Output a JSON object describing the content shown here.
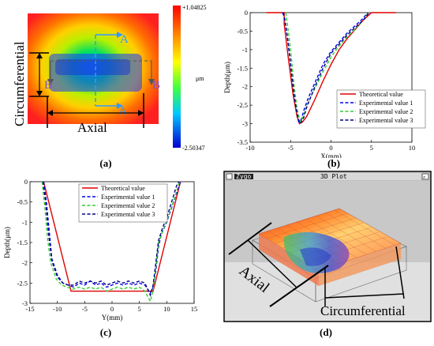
{
  "panel_a": {
    "cb_max": "+1.04825",
    "cb_min": "-2.50347",
    "cb_unit": "μm",
    "lbl_circ": "Circumferential",
    "lbl_axial": "Axial",
    "lbl_A_top": "A",
    "lbl_A_bot": "A",
    "lbl_B_left": "B",
    "lbl_B_right": "B",
    "caption": "(a)"
  },
  "panel_d": {
    "window_title": "3D Plot",
    "logo_text": "Zygo",
    "lbl_axial": "Axial",
    "lbl_circ": "Circumferential",
    "caption": "(d)"
  },
  "captions": {
    "b": "(b)",
    "c": "(c)"
  },
  "colors": {
    "theoretical": "#e00000",
    "exp1": "#0000ee",
    "exp2": "#33cc33",
    "exp3": "#000080"
  },
  "chart_data": [
    {
      "id": "b",
      "type": "line",
      "xlabel": "X(mm)",
      "ylabel": "Depth(μm)",
      "xlim": [
        -10,
        10
      ],
      "ylim": [
        -3.5,
        0
      ],
      "xticks": [
        -10,
        -5,
        0,
        5,
        10
      ],
      "yticks": [
        0,
        -0.5,
        -1,
        -1.5,
        -2,
        -2.5,
        -3,
        -3.5
      ],
      "legend_position": "inside-right",
      "series": [
        {
          "name": "Theoretical value",
          "style": "solid",
          "color": "#e00000",
          "points": [
            [
              -8,
              0
            ],
            [
              -5.8,
              0
            ],
            [
              -5.8,
              -0.3
            ],
            [
              -5.3,
              -1.2
            ],
            [
              -4.7,
              -2.2
            ],
            [
              -4.2,
              -2.8
            ],
            [
              -3.9,
              -3.0
            ],
            [
              -3.5,
              -2.95
            ],
            [
              -3.0,
              -2.8
            ],
            [
              -2.0,
              -2.35
            ],
            [
              -1.0,
              -1.85
            ],
            [
              0,
              -1.4
            ],
            [
              1.0,
              -1.0
            ],
            [
              2.0,
              -0.7
            ],
            [
              3.0,
              -0.45
            ],
            [
              4.0,
              -0.2
            ],
            [
              5.0,
              0
            ],
            [
              8,
              0
            ]
          ]
        },
        {
          "name": "Experimental value 1",
          "style": "dashed",
          "color": "#0000ee",
          "points": [
            [
              -6.0,
              0
            ],
            [
              -5.8,
              -0.1
            ],
            [
              -5.5,
              -0.5
            ],
            [
              -5.1,
              -1.2
            ],
            [
              -4.7,
              -2.0
            ],
            [
              -4.3,
              -2.6
            ],
            [
              -4.0,
              -2.95
            ],
            [
              -3.7,
              -2.9
            ],
            [
              -3.3,
              -2.6
            ],
            [
              -2.8,
              -2.3
            ],
            [
              -2.0,
              -1.9
            ],
            [
              -1.0,
              -1.4
            ],
            [
              0,
              -1.05
            ],
            [
              1.0,
              -0.8
            ],
            [
              2.0,
              -0.55
            ],
            [
              3.0,
              -0.35
            ],
            [
              4.0,
              -0.15
            ],
            [
              4.5,
              0
            ]
          ]
        },
        {
          "name": "Experimental value 2",
          "style": "dashed",
          "color": "#33cc33",
          "points": [
            [
              -5.6,
              0
            ],
            [
              -5.4,
              -0.3
            ],
            [
              -5.0,
              -1.0
            ],
            [
              -4.6,
              -1.9
            ],
            [
              -4.2,
              -2.6
            ],
            [
              -3.8,
              -2.95
            ],
            [
              -3.4,
              -2.8
            ],
            [
              -3.0,
              -2.5
            ],
            [
              -2.0,
              -2.05
            ],
            [
              -1.0,
              -1.6
            ],
            [
              0,
              -1.2
            ],
            [
              1.0,
              -0.9
            ],
            [
              2.0,
              -0.65
            ],
            [
              3.0,
              -0.45
            ],
            [
              4.0,
              -0.2
            ],
            [
              4.6,
              0
            ]
          ]
        },
        {
          "name": "Experimental value 3",
          "style": "dashed",
          "color": "#000080",
          "points": [
            [
              -5.9,
              0
            ],
            [
              -5.7,
              -0.2
            ],
            [
              -5.3,
              -0.8
            ],
            [
              -4.9,
              -1.6
            ],
            [
              -4.5,
              -2.35
            ],
            [
              -4.1,
              -2.85
            ],
            [
              -3.8,
              -3.0
            ],
            [
              -3.4,
              -2.85
            ],
            [
              -3.0,
              -2.55
            ],
            [
              -2.0,
              -2.0
            ],
            [
              -1.0,
              -1.5
            ],
            [
              0,
              -1.1
            ],
            [
              1.0,
              -0.85
            ],
            [
              2.0,
              -0.6
            ],
            [
              3.0,
              -0.4
            ],
            [
              4.0,
              -0.2
            ],
            [
              4.7,
              0
            ]
          ]
        }
      ]
    },
    {
      "id": "c",
      "type": "line",
      "xlabel": "Y(mm)",
      "ylabel": "Depth(μm)",
      "xlim": [
        -15,
        15
      ],
      "ylim": [
        -3,
        0
      ],
      "xticks": [
        -15,
        -10,
        -5,
        0,
        5,
        10,
        15
      ],
      "yticks": [
        0,
        -0.5,
        -1,
        -1.5,
        -2,
        -2.5,
        -3
      ],
      "legend_position": "top-right",
      "series": [
        {
          "name": "Theoretical value",
          "style": "solid",
          "color": "#e00000",
          "points": [
            [
              -12.5,
              0
            ],
            [
              -7.5,
              -2.7
            ],
            [
              7.5,
              -2.7
            ],
            [
              12.5,
              0
            ]
          ]
        },
        {
          "name": "Experimental value 1",
          "style": "dashed",
          "color": "#0000ee",
          "points": [
            [
              -12.5,
              0
            ],
            [
              -12,
              -0.5
            ],
            [
              -11.5,
              -1.2
            ],
            [
              -11,
              -1.9
            ],
            [
              -10,
              -2.3
            ],
            [
              -9,
              -2.5
            ],
            [
              -8,
              -2.55
            ],
            [
              -7,
              -2.6
            ],
            [
              -6,
              -2.5
            ],
            [
              -5,
              -2.55
            ],
            [
              -4,
              -2.45
            ],
            [
              -3,
              -2.55
            ],
            [
              -2,
              -2.5
            ],
            [
              -1,
              -2.6
            ],
            [
              0,
              -2.55
            ],
            [
              1,
              -2.5
            ],
            [
              2,
              -2.55
            ],
            [
              3,
              -2.5
            ],
            [
              4,
              -2.55
            ],
            [
              5,
              -2.5
            ],
            [
              6,
              -2.55
            ],
            [
              7,
              -2.75
            ],
            [
              7.5,
              -2.6
            ],
            [
              8,
              -2.2
            ],
            [
              8.5,
              -1.6
            ],
            [
              9,
              -1.3
            ],
            [
              10,
              -1.0
            ],
            [
              11,
              -0.6
            ],
            [
              12,
              -0.2
            ],
            [
              12.5,
              0
            ]
          ]
        },
        {
          "name": "Experimental value 2",
          "style": "dashed",
          "color": "#33cc33",
          "points": [
            [
              -12.8,
              0
            ],
            [
              -12.3,
              -0.6
            ],
            [
              -11.8,
              -1.4
            ],
            [
              -11.2,
              -2.0
            ],
            [
              -10.2,
              -2.4
            ],
            [
              -9.2,
              -2.55
            ],
            [
              -8.2,
              -2.6
            ],
            [
              -7.2,
              -2.65
            ],
            [
              -6,
              -2.6
            ],
            [
              -5,
              -2.65
            ],
            [
              -4,
              -2.6
            ],
            [
              -3,
              -2.65
            ],
            [
              -2,
              -2.6
            ],
            [
              -1,
              -2.7
            ],
            [
              0,
              -2.65
            ],
            [
              1,
              -2.6
            ],
            [
              2,
              -2.65
            ],
            [
              3,
              -2.6
            ],
            [
              4,
              -2.65
            ],
            [
              5,
              -2.6
            ],
            [
              6,
              -2.7
            ],
            [
              7,
              -2.95
            ],
            [
              7.5,
              -2.7
            ],
            [
              8,
              -2.1
            ],
            [
              8.5,
              -1.5
            ],
            [
              9.3,
              -1.2
            ],
            [
              10.2,
              -0.9
            ],
            [
              11.2,
              -0.5
            ],
            [
              12,
              -0.15
            ],
            [
              12.3,
              0
            ]
          ]
        },
        {
          "name": "Experimental value 3",
          "style": "dashed",
          "color": "#000080",
          "points": [
            [
              -12.6,
              0
            ],
            [
              -12.1,
              -0.55
            ],
            [
              -11.6,
              -1.3
            ],
            [
              -11,
              -1.95
            ],
            [
              -10,
              -2.35
            ],
            [
              -9,
              -2.5
            ],
            [
              -8,
              -2.55
            ],
            [
              -7,
              -2.55
            ],
            [
              -6,
              -2.45
            ],
            [
              -5,
              -2.5
            ],
            [
              -4,
              -2.45
            ],
            [
              -3,
              -2.5
            ],
            [
              -2,
              -2.45
            ],
            [
              -1,
              -2.55
            ],
            [
              0,
              -2.5
            ],
            [
              1,
              -2.45
            ],
            [
              2,
              -2.5
            ],
            [
              3,
              -2.45
            ],
            [
              4,
              -2.5
            ],
            [
              5,
              -2.45
            ],
            [
              6,
              -2.5
            ],
            [
              7,
              -2.8
            ],
            [
              7.5,
              -2.55
            ],
            [
              8,
              -2.0
            ],
            [
              8.5,
              -1.45
            ],
            [
              9.2,
              -1.15
            ],
            [
              10.1,
              -0.85
            ],
            [
              11,
              -0.45
            ],
            [
              11.8,
              -0.1
            ],
            [
              12.2,
              0
            ]
          ]
        }
      ]
    }
  ]
}
